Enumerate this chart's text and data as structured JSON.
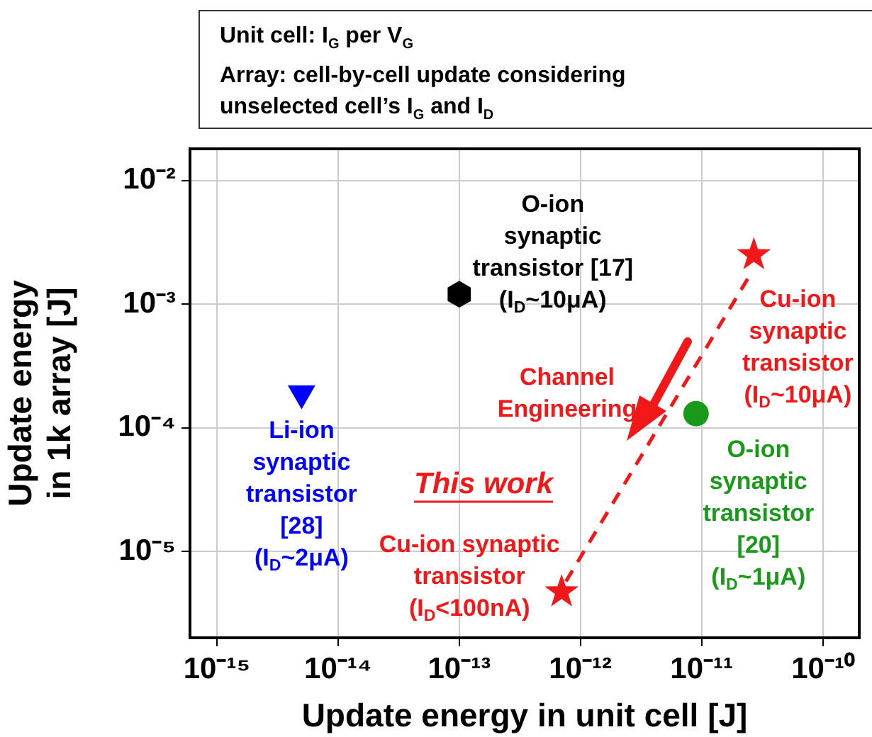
{
  "chart_data": {
    "type": "scatter",
    "xlabel": "Update energy in unit cell [J]",
    "ylabel": "Update energy\nin 1k array [J]",
    "log": "xy",
    "xlim": [
      6e-16,
      2e-10
    ],
    "ylim": [
      2e-06,
      0.018
    ],
    "xticks": [
      {
        "value": 1e-15,
        "label": "10⁻¹⁵"
      },
      {
        "value": 1e-14,
        "label": "10⁻¹⁴"
      },
      {
        "value": 1e-13,
        "label": "10⁻¹³"
      },
      {
        "value": 1e-12,
        "label": "10⁻¹²"
      },
      {
        "value": 1e-11,
        "label": "10⁻¹¹"
      },
      {
        "value": 1e-10,
        "label": "10⁻¹⁰"
      }
    ],
    "yticks": [
      {
        "value": 1e-05,
        "label": "10⁻⁵"
      },
      {
        "value": 0.0001,
        "label": "10⁻⁴"
      },
      {
        "value": 0.001,
        "label": "10⁻³"
      },
      {
        "value": 0.01,
        "label": "10⁻²"
      }
    ],
    "grid": true,
    "legend": false,
    "series": [
      {
        "name": "Li-ion\nsynaptic\ntransistor\n[28]\n(I$_{D}$~2μA)",
        "color": "#0000ff",
        "marker": "triangle_down",
        "x": [
          5e-15
        ],
        "values": [
          0.00019
        ]
      },
      {
        "name": "O-ion\nsynaptic\ntransistor [17]\n(I$_{D}$~10μA)",
        "color": "#000000",
        "x": [
          1e-13
        ],
        "values": [
          0.0012
        ]
      },
      {
        "name": "O-ion\nsynaptic\ntransistor\n[20]\n(I$_{D}$~1μA)",
        "color": "#1a9a1a",
        "marker": "circle",
        "x": [
          9e-12
        ],
        "values": [
          0.00013
        ]
      },
      {
        "name": "Cu-ion\nsynaptic\ntransistor\n(I$_{D}$~10μA)",
        "color": "#f01818",
        "marker": "star",
        "x": [
          2.7e-11
        ],
        "values": [
          0.0025
        ]
      },
      {
        "name": "Cu-ion synaptic\ntransistor\n(I$_{D}$<100nA)",
        "color": "#f01818",
        "marker": "star",
        "x": [
          7e-13
        ],
        "values": [
          4.7e-06
        ]
      },
      {
        "type": "line",
        "color": "#f01818",
        "marker": "none",
        "line_style": "dashed",
        "x": [
          2.4e-11,
          7.5e-13
        ],
        "values": [
          0.0016,
          5.6e-06
        ]
      }
    ],
    "annotations": [
      "Unit cell: I$_{G}$ per V$_{G}$",
      "Array: cell-by-cell update considering",
      "unselected cell’s I$_{G}$ and I$_{D}$",
      "This work",
      "Channel\nEngineering"
    ]
  }
}
